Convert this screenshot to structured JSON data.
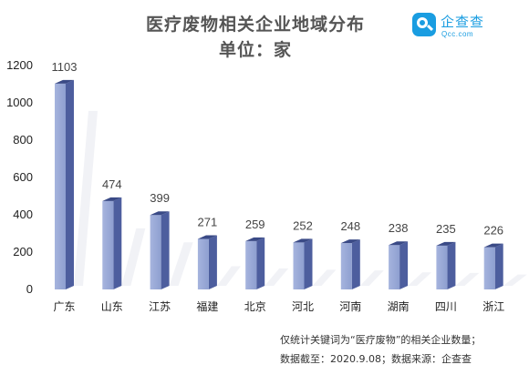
{
  "chart_data": {
    "type": "bar",
    "title": "医疗废物相关企业地域分布",
    "subtitle": "单位：家",
    "categories": [
      "广东",
      "山东",
      "江苏",
      "福建",
      "北京",
      "河北",
      "河南",
      "湖南",
      "四川",
      "浙江"
    ],
    "values": [
      1103,
      474,
      399,
      271,
      259,
      252,
      248,
      238,
      235,
      226
    ],
    "ylim": [
      0,
      1200
    ],
    "yticks": [
      0,
      200,
      400,
      600,
      800,
      1000,
      1200
    ],
    "grid": false,
    "legend": "none",
    "colors": {
      "bar_front": "#8e9fd0",
      "bar_side": "#4d5e9e",
      "bar_top": "#3a4a86"
    }
  },
  "notes": {
    "line1": "仅统计关键词为“医疗废物”的相关企业数量；",
    "line2": "数据截至：2020.9.08；数据来源：企查查"
  },
  "logo": {
    "name": "企查查",
    "domain": "Qcc.com",
    "icon": "magnifier-icon",
    "color": "#1a9de1"
  }
}
